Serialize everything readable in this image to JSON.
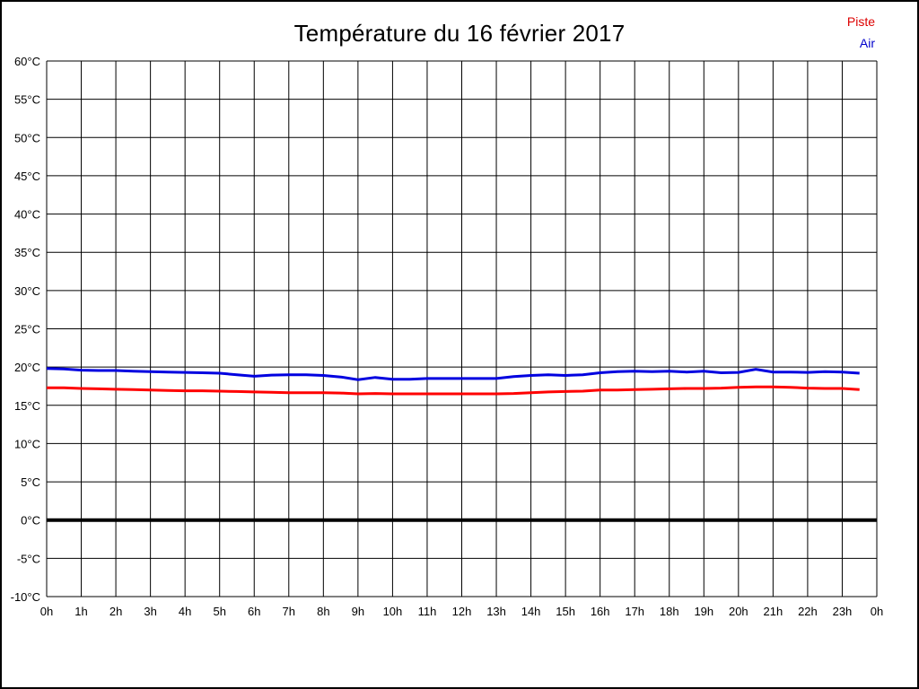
{
  "title": "Température du 16 février 2017",
  "legend": {
    "items": [
      {
        "label": "Piste",
        "color": "#dd0000"
      },
      {
        "label": "Air",
        "color": "#0000cc"
      }
    ]
  },
  "chart_data": {
    "type": "line",
    "title": "Température du 16 février 2017",
    "xlabel": "",
    "ylabel": "°C",
    "xlim": [
      0,
      24
    ],
    "ylim": [
      -10,
      60
    ],
    "y_tick_step": 5,
    "grid": true,
    "zero_line_value": 0,
    "zero_line_color": "#000000",
    "grid_color": "#000000",
    "legend_position": "top-right",
    "y_tick_labels": [
      "60°C",
      "55°C",
      "50°C",
      "45°C",
      "40°C",
      "35°C",
      "30°C",
      "25°C",
      "20°C",
      "15°C",
      "10°C",
      "5°C",
      "0°C",
      "-5°C",
      "-10°C"
    ],
    "x_tick_labels": [
      "0h",
      "1h",
      "2h",
      "3h",
      "4h",
      "5h",
      "6h",
      "7h",
      "8h",
      "9h",
      "10h",
      "11h",
      "12h",
      "13h",
      "14h",
      "15h",
      "16h",
      "17h",
      "18h",
      "19h",
      "20h",
      "21h",
      "22h",
      "23h",
      "0h"
    ],
    "x": [
      0,
      0.5,
      1,
      1.5,
      2,
      2.5,
      3,
      3.5,
      4,
      4.5,
      5,
      5.5,
      6,
      6.5,
      7,
      7.5,
      8,
      8.5,
      9,
      9.5,
      10,
      10.5,
      11,
      11.5,
      12,
      12.5,
      13,
      13.5,
      14,
      14.5,
      15,
      15.5,
      16,
      16.5,
      17,
      17.5,
      18,
      18.5,
      19,
      19.5,
      20,
      20.5,
      21,
      21.5,
      22,
      22.5,
      23,
      23.5
    ],
    "series": [
      {
        "name": "Piste",
        "color": "#ff0000",
        "values": [
          17.3,
          17.3,
          17.2,
          17.15,
          17.1,
          17.05,
          17.0,
          16.95,
          16.9,
          16.9,
          16.85,
          16.8,
          16.75,
          16.7,
          16.65,
          16.65,
          16.65,
          16.6,
          16.5,
          16.55,
          16.5,
          16.5,
          16.5,
          16.5,
          16.5,
          16.5,
          16.5,
          16.55,
          16.65,
          16.75,
          16.8,
          16.85,
          17.0,
          17.0,
          17.05,
          17.1,
          17.15,
          17.2,
          17.2,
          17.25,
          17.35,
          17.4,
          17.4,
          17.35,
          17.25,
          17.2,
          17.2,
          17.05
        ]
      },
      {
        "name": "Air",
        "color": "#0000e0",
        "values": [
          19.8,
          19.75,
          19.6,
          19.55,
          19.55,
          19.45,
          19.4,
          19.35,
          19.3,
          19.25,
          19.2,
          19.0,
          18.8,
          18.95,
          19.0,
          19.0,
          18.9,
          18.7,
          18.35,
          18.65,
          18.4,
          18.4,
          18.5,
          18.5,
          18.5,
          18.5,
          18.5,
          18.75,
          18.9,
          19.0,
          18.9,
          19.0,
          19.25,
          19.4,
          19.45,
          19.4,
          19.45,
          19.35,
          19.45,
          19.25,
          19.3,
          19.7,
          19.35,
          19.35,
          19.3,
          19.4,
          19.35,
          19.2
        ]
      }
    ]
  }
}
